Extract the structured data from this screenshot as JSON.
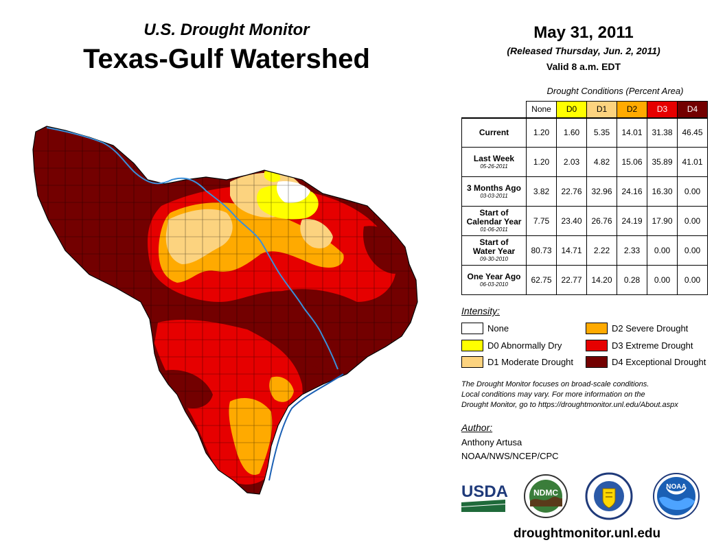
{
  "header": {
    "subtitle": "U.S. Drought Monitor",
    "title": "Texas-Gulf Watershed",
    "date": "May 31, 2011",
    "released": "(Released Thursday, Jun. 2, 2011)",
    "valid": "Valid 8 a.m. EDT"
  },
  "table": {
    "caption": "Drought Conditions (Percent Area)",
    "columns": [
      "None",
      "D0",
      "D1",
      "D2",
      "D3",
      "D4"
    ],
    "column_colors": [
      "#ffffff",
      "#ffff00",
      "#fcd37f",
      "#ffaa00",
      "#e60000",
      "#730000"
    ],
    "column_text_colors": [
      "#000000",
      "#000000",
      "#000000",
      "#000000",
      "#ffffff",
      "#ffffff"
    ],
    "rows": [
      {
        "label_lines": [
          "Current"
        ],
        "sub": "",
        "values": [
          "1.20",
          "1.60",
          "5.35",
          "14.01",
          "31.38",
          "46.45"
        ]
      },
      {
        "label_lines": [
          "Last Week"
        ],
        "sub": "05-26-2011",
        "values": [
          "1.20",
          "2.03",
          "4.82",
          "15.06",
          "35.89",
          "41.01"
        ]
      },
      {
        "label_lines": [
          "3 Months Ago"
        ],
        "sub": "03-03-2011",
        "values": [
          "3.82",
          "22.76",
          "32.96",
          "24.16",
          "16.30",
          "0.00"
        ]
      },
      {
        "label_lines": [
          "Start of",
          "Calendar Year"
        ],
        "sub": "01-06-2011",
        "values": [
          "7.75",
          "23.40",
          "26.76",
          "24.19",
          "17.90",
          "0.00"
        ]
      },
      {
        "label_lines": [
          "Start of",
          "Water Year"
        ],
        "sub": "09-30-2010",
        "values": [
          "80.73",
          "14.71",
          "2.22",
          "2.33",
          "0.00",
          "0.00"
        ]
      },
      {
        "label_lines": [
          "One Year Ago"
        ],
        "sub": "06-03-2010",
        "values": [
          "62.75",
          "22.77",
          "14.20",
          "0.28",
          "0.00",
          "0.00"
        ]
      }
    ]
  },
  "legend": {
    "title": "Intensity:",
    "items": [
      {
        "label": "None",
        "color": "#ffffff"
      },
      {
        "label": "D0 Abnormally Dry",
        "color": "#ffff00"
      },
      {
        "label": "D1 Moderate Drought",
        "color": "#fcd37f"
      },
      {
        "label": "D2 Severe Drought",
        "color": "#ffaa00"
      },
      {
        "label": "D3 Extreme Drought",
        "color": "#e60000"
      },
      {
        "label": "D4 Exceptional Drought",
        "color": "#730000"
      }
    ]
  },
  "note": {
    "line1": "The Drought Monitor focuses on broad-scale conditions.",
    "line2": "Local conditions may vary. For more information on the",
    "line3": "Drought Monitor, go to https://droughtmonitor.unl.edu/About.aspx"
  },
  "author": {
    "label": "Author:",
    "name": "Anthony Artusa",
    "org": "NOAA/NWS/NCEP/CPC"
  },
  "logos": {
    "usda": "USDA",
    "ndmc": "NDMC",
    "noaa": "NOAA"
  },
  "website": "droughtmonitor.unl.edu",
  "colors": {
    "d4": "#730000",
    "d3": "#e60000",
    "d2": "#ffaa00",
    "d1": "#fcd37f",
    "d0": "#ffff00",
    "none": "#ffffff",
    "river": "#3a8fd9"
  }
}
